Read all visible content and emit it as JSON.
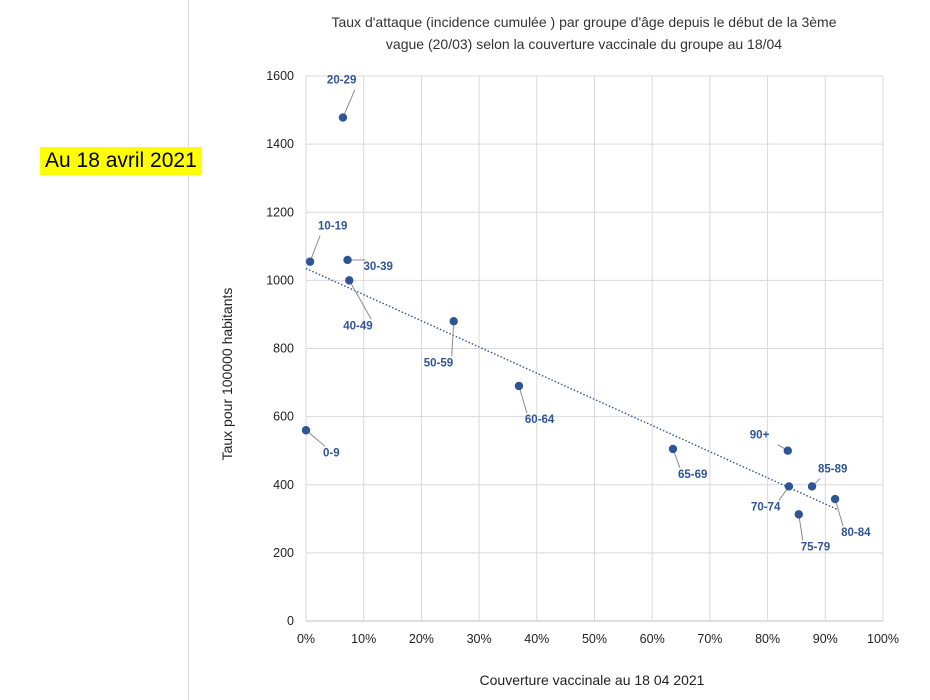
{
  "badge": "Au 18 avril 2021",
  "chart_data": {
    "type": "scatter",
    "title": "Taux d'attaque (incidence cumulée ) par groupe d'âge depuis le début de la 3ème vague (20/03) selon la couverture vaccinale du groupe au 18/04",
    "title_lines": [
      "Taux d'attaque (incidence cumulée ) par groupe d'âge depuis le début de la 3ème",
      "vague (20/03) selon la couverture vaccinale du groupe au 18/04"
    ],
    "xlabel": "Couverture vaccinale au 18 04 2021",
    "ylabel": "Taux  pour 100000 habitants",
    "xlim": [
      0,
      100
    ],
    "ylim": [
      0,
      1600
    ],
    "x_ticks": [
      "0%",
      "10%",
      "20%",
      "30%",
      "40%",
      "50%",
      "60%",
      "70%",
      "80%",
      "90%",
      "100%"
    ],
    "y_ticks": [
      "0",
      "200",
      "400",
      "600",
      "800",
      "1000",
      "1200",
      "1400",
      "1600"
    ],
    "grid": true,
    "legend": "none",
    "point_color": "#2f5597",
    "trendline": {
      "style": "dotted linear",
      "x": [
        0,
        92
      ],
      "y": [
        1035,
        328
      ]
    },
    "points": [
      {
        "label": "0-9",
        "x": 0,
        "y": 560
      },
      {
        "label": "10-19",
        "x": 0.7,
        "y": 1055
      },
      {
        "label": "20-29",
        "x": 6.4,
        "y": 1478
      },
      {
        "label": "30-39",
        "x": 7.2,
        "y": 1060
      },
      {
        "label": "40-49",
        "x": 7.5,
        "y": 1000
      },
      {
        "label": "50-59",
        "x": 25.6,
        "y": 880
      },
      {
        "label": "60-64",
        "x": 36.9,
        "y": 690
      },
      {
        "label": "65-69",
        "x": 63.6,
        "y": 505
      },
      {
        "label": "70-74",
        "x": 83.7,
        "y": 395
      },
      {
        "label": "75-79",
        "x": 85.4,
        "y": 313
      },
      {
        "label": "80-84",
        "x": 91.7,
        "y": 358
      },
      {
        "label": "85-89",
        "x": 87.7,
        "y": 395
      },
      {
        "label": "90+",
        "x": 83.5,
        "y": 500
      }
    ]
  }
}
